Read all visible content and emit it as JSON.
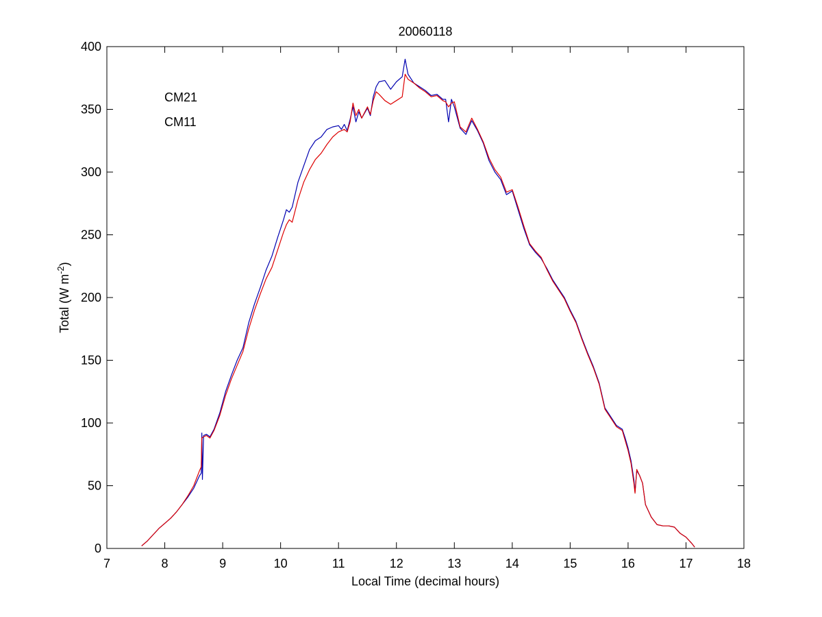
{
  "chart_data": {
    "type": "line",
    "title": "20060118",
    "xlabel": "Local Time (decimal hours)",
    "ylabel": {
      "main": "Total (W m",
      "sup": "-2",
      "tail": ")"
    },
    "xlim": [
      7,
      18
    ],
    "ylim": [
      0,
      400
    ],
    "xticks": [
      "7",
      "8",
      "9",
      "10",
      "11",
      "12",
      "13",
      "14",
      "15",
      "16",
      "17",
      "18"
    ],
    "yticks": [
      "0",
      "50",
      "100",
      "150",
      "200",
      "250",
      "300",
      "350",
      "400"
    ],
    "grid": false,
    "legend_position": "top-left",
    "series": [
      {
        "name": "CM21",
        "color": "#0000b0",
        "points": [
          [
            7.6,
            2
          ],
          [
            7.7,
            6
          ],
          [
            7.8,
            11
          ],
          [
            7.9,
            16
          ],
          [
            8.0,
            20
          ],
          [
            8.1,
            24
          ],
          [
            8.2,
            29
          ],
          [
            8.3,
            35
          ],
          [
            8.4,
            41
          ],
          [
            8.5,
            48
          ],
          [
            8.55,
            53
          ],
          [
            8.6,
            58
          ],
          [
            8.63,
            60
          ],
          [
            8.64,
            92
          ],
          [
            8.65,
            55
          ],
          [
            8.67,
            90
          ],
          [
            8.72,
            91
          ],
          [
            8.78,
            89
          ],
          [
            8.85,
            95
          ],
          [
            8.95,
            108
          ],
          [
            9.05,
            125
          ],
          [
            9.15,
            138
          ],
          [
            9.25,
            150
          ],
          [
            9.35,
            160
          ],
          [
            9.45,
            180
          ],
          [
            9.55,
            195
          ],
          [
            9.65,
            208
          ],
          [
            9.75,
            222
          ],
          [
            9.85,
            233
          ],
          [
            9.95,
            248
          ],
          [
            10.05,
            262
          ],
          [
            10.1,
            270
          ],
          [
            10.15,
            268
          ],
          [
            10.2,
            272
          ],
          [
            10.3,
            292
          ],
          [
            10.4,
            305
          ],
          [
            10.5,
            318
          ],
          [
            10.6,
            325
          ],
          [
            10.7,
            328
          ],
          [
            10.8,
            334
          ],
          [
            10.9,
            336
          ],
          [
            11.0,
            337
          ],
          [
            11.05,
            334
          ],
          [
            11.1,
            338
          ],
          [
            11.15,
            333
          ],
          [
            11.2,
            342
          ],
          [
            11.25,
            352
          ],
          [
            11.3,
            340
          ],
          [
            11.35,
            348
          ],
          [
            11.4,
            343
          ],
          [
            11.5,
            351
          ],
          [
            11.55,
            345
          ],
          [
            11.6,
            360
          ],
          [
            11.65,
            368
          ],
          [
            11.7,
            372
          ],
          [
            11.8,
            373
          ],
          [
            11.9,
            366
          ],
          [
            12.0,
            372
          ],
          [
            12.1,
            376
          ],
          [
            12.15,
            390
          ],
          [
            12.2,
            378
          ],
          [
            12.3,
            371
          ],
          [
            12.4,
            368
          ],
          [
            12.5,
            365
          ],
          [
            12.6,
            361
          ],
          [
            12.7,
            362
          ],
          [
            12.8,
            358
          ],
          [
            12.85,
            358
          ],
          [
            12.9,
            340
          ],
          [
            12.95,
            358
          ],
          [
            13.0,
            352
          ],
          [
            13.1,
            335
          ],
          [
            13.2,
            330
          ],
          [
            13.3,
            341
          ],
          [
            13.4,
            333
          ],
          [
            13.5,
            323
          ],
          [
            13.6,
            309
          ],
          [
            13.7,
            300
          ],
          [
            13.8,
            294
          ],
          [
            13.9,
            282
          ],
          [
            14.0,
            285
          ],
          [
            14.1,
            270
          ],
          [
            14.2,
            255
          ],
          [
            14.3,
            242
          ],
          [
            14.4,
            236
          ],
          [
            14.5,
            231
          ],
          [
            14.6,
            223
          ],
          [
            14.7,
            214
          ],
          [
            14.8,
            207
          ],
          [
            14.9,
            200
          ],
          [
            15.0,
            190
          ],
          [
            15.1,
            181
          ],
          [
            15.2,
            168
          ],
          [
            15.3,
            156
          ],
          [
            15.4,
            145
          ],
          [
            15.5,
            132
          ],
          [
            15.6,
            112
          ],
          [
            15.7,
            105
          ],
          [
            15.8,
            98
          ],
          [
            15.9,
            95
          ],
          [
            15.95,
            88
          ],
          [
            16.0,
            80
          ],
          [
            16.05,
            70
          ],
          [
            16.1,
            55
          ],
          [
            16.12,
            45
          ],
          [
            16.15,
            62
          ],
          [
            16.2,
            58
          ],
          [
            16.25,
            52
          ],
          [
            16.3,
            35
          ],
          [
            16.4,
            25
          ],
          [
            16.5,
            19
          ],
          [
            16.6,
            18
          ],
          [
            16.7,
            18
          ],
          [
            16.8,
            17
          ],
          [
            16.9,
            12
          ],
          [
            17.0,
            9
          ],
          [
            17.1,
            4
          ],
          [
            17.15,
            1
          ]
        ]
      },
      {
        "name": "CM11",
        "color": "#dd0000",
        "points": [
          [
            7.6,
            2
          ],
          [
            7.7,
            6
          ],
          [
            7.8,
            11
          ],
          [
            7.9,
            16
          ],
          [
            8.0,
            20
          ],
          [
            8.1,
            24
          ],
          [
            8.2,
            29
          ],
          [
            8.3,
            35
          ],
          [
            8.4,
            42
          ],
          [
            8.5,
            50
          ],
          [
            8.55,
            56
          ],
          [
            8.6,
            62
          ],
          [
            8.63,
            65
          ],
          [
            8.64,
            88
          ],
          [
            8.67,
            89
          ],
          [
            8.72,
            90
          ],
          [
            8.78,
            88
          ],
          [
            8.85,
            94
          ],
          [
            8.95,
            106
          ],
          [
            9.05,
            122
          ],
          [
            9.15,
            135
          ],
          [
            9.25,
            146
          ],
          [
            9.35,
            157
          ],
          [
            9.45,
            175
          ],
          [
            9.55,
            190
          ],
          [
            9.65,
            203
          ],
          [
            9.75,
            215
          ],
          [
            9.85,
            224
          ],
          [
            9.95,
            238
          ],
          [
            10.05,
            252
          ],
          [
            10.1,
            258
          ],
          [
            10.15,
            262
          ],
          [
            10.2,
            260
          ],
          [
            10.3,
            278
          ],
          [
            10.4,
            292
          ],
          [
            10.5,
            302
          ],
          [
            10.6,
            310
          ],
          [
            10.7,
            315
          ],
          [
            10.8,
            322
          ],
          [
            10.9,
            328
          ],
          [
            11.0,
            332
          ],
          [
            11.05,
            333
          ],
          [
            11.1,
            334
          ],
          [
            11.15,
            332
          ],
          [
            11.2,
            340
          ],
          [
            11.25,
            355
          ],
          [
            11.3,
            345
          ],
          [
            11.35,
            350
          ],
          [
            11.4,
            343
          ],
          [
            11.5,
            352
          ],
          [
            11.55,
            346
          ],
          [
            11.6,
            357
          ],
          [
            11.65,
            364
          ],
          [
            11.7,
            362
          ],
          [
            11.8,
            357
          ],
          [
            11.9,
            354
          ],
          [
            12.0,
            357
          ],
          [
            12.1,
            360
          ],
          [
            12.15,
            378
          ],
          [
            12.2,
            374
          ],
          [
            12.3,
            371
          ],
          [
            12.4,
            367
          ],
          [
            12.5,
            364
          ],
          [
            12.6,
            360
          ],
          [
            12.7,
            361
          ],
          [
            12.8,
            357
          ],
          [
            12.85,
            356
          ],
          [
            12.9,
            352
          ],
          [
            12.95,
            355
          ],
          [
            13.0,
            356
          ],
          [
            13.1,
            336
          ],
          [
            13.2,
            332
          ],
          [
            13.3,
            343
          ],
          [
            13.4,
            334
          ],
          [
            13.5,
            324
          ],
          [
            13.6,
            311
          ],
          [
            13.7,
            302
          ],
          [
            13.8,
            296
          ],
          [
            13.9,
            284
          ],
          [
            14.0,
            286
          ],
          [
            14.1,
            272
          ],
          [
            14.2,
            257
          ],
          [
            14.3,
            243
          ],
          [
            14.4,
            237
          ],
          [
            14.5,
            232
          ],
          [
            14.6,
            222
          ],
          [
            14.7,
            213
          ],
          [
            14.8,
            206
          ],
          [
            14.9,
            199
          ],
          [
            15.0,
            189
          ],
          [
            15.1,
            180
          ],
          [
            15.2,
            167
          ],
          [
            15.3,
            155
          ],
          [
            15.4,
            144
          ],
          [
            15.5,
            131
          ],
          [
            15.6,
            111
          ],
          [
            15.7,
            104
          ],
          [
            15.8,
            97
          ],
          [
            15.9,
            94
          ],
          [
            15.95,
            86
          ],
          [
            16.0,
            78
          ],
          [
            16.05,
            68
          ],
          [
            16.1,
            52
          ],
          [
            16.12,
            44
          ],
          [
            16.15,
            63
          ],
          [
            16.2,
            58
          ],
          [
            16.25,
            52
          ],
          [
            16.3,
            35
          ],
          [
            16.4,
            25
          ],
          [
            16.5,
            19
          ],
          [
            16.6,
            18
          ],
          [
            16.7,
            18
          ],
          [
            16.8,
            17
          ],
          [
            16.9,
            12
          ],
          [
            17.0,
            9
          ],
          [
            17.1,
            4
          ],
          [
            17.15,
            1
          ]
        ]
      }
    ]
  }
}
